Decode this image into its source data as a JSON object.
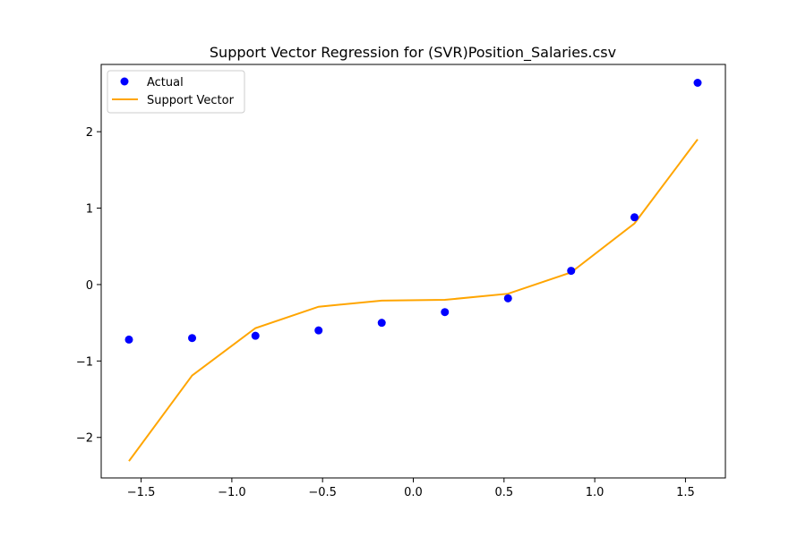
{
  "chart_data": {
    "type": "scatter",
    "title": "Support Vector Regression for (SVR)Position_Salaries.csv",
    "xlabel": "",
    "ylabel": "",
    "xlim": [
      -1.72,
      1.72
    ],
    "ylim": [
      -2.53,
      2.88
    ],
    "xticks": [
      -1.5,
      -1.0,
      -0.5,
      0.0,
      0.5,
      1.0,
      1.5
    ],
    "xtick_labels": [
      "−1.5",
      "−1.0",
      "−0.5",
      "0.0",
      "0.5",
      "1.0",
      "1.5"
    ],
    "yticks": [
      -2,
      -1,
      0,
      1,
      2
    ],
    "ytick_labels": [
      "−2",
      "−1",
      "0",
      "1",
      "2"
    ],
    "legend_position": "top-left",
    "grid": false,
    "series": [
      {
        "name": "Actual",
        "kind": "scatter",
        "color": "#0000ff",
        "x": [
          -1.567,
          -1.219,
          -0.87,
          -0.522,
          -0.174,
          0.174,
          0.522,
          0.87,
          1.219,
          1.567
        ],
        "y": [
          -0.72,
          -0.7,
          -0.67,
          -0.6,
          -0.5,
          -0.36,
          -0.18,
          0.18,
          0.88,
          2.64
        ]
      },
      {
        "name": "Support Vector",
        "kind": "line",
        "color": "#ffa500",
        "x": [
          -1.567,
          -1.219,
          -0.87,
          -0.522,
          -0.174,
          0.174,
          0.522,
          0.87,
          1.219,
          1.567
        ],
        "y": [
          -2.31,
          -1.19,
          -0.57,
          -0.29,
          -0.21,
          -0.2,
          -0.12,
          0.16,
          0.8,
          1.9
        ]
      }
    ]
  }
}
